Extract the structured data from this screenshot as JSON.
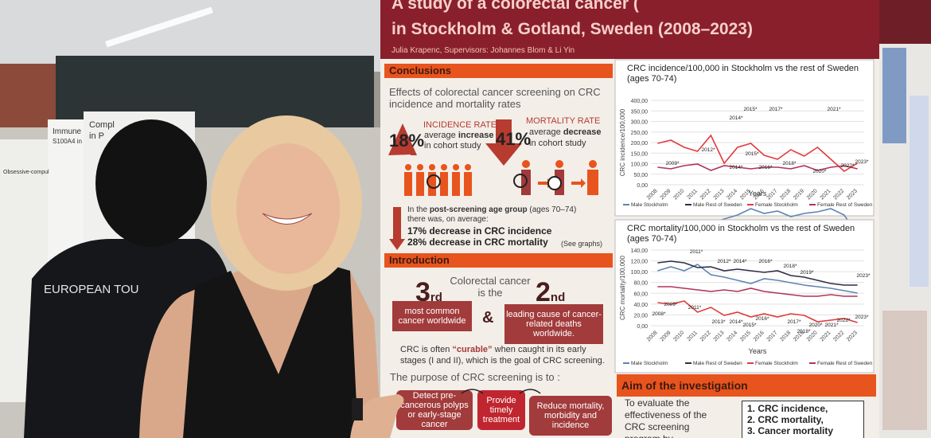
{
  "background": {
    "posters": [
      "Immune",
      "S100A4 in",
      "Compl",
      "in P",
      "Obsessive-compul"
    ],
    "tshirt": "EUROPEAN TOU"
  },
  "poster": {
    "title_lines": [
      "A study of a colorectal cancer (",
      "in Stockholm & Gotland, Sweden (2008–2023)"
    ],
    "authors": "Julia Krapenc, Supervisors: Johannes Blom & Li Yin",
    "conclusions": {
      "heading": "Conclusions",
      "intro": "Effects of colorectal cancer screening on CRC incidence and mortality rates",
      "incidence": {
        "value": "18%",
        "label": "INCIDENCE RATE",
        "pre": "average ",
        "bold": "increase",
        "post": "in cohort study"
      },
      "mortality": {
        "value": "41%",
        "label": "MORTALITY RATE",
        "pre": "average ",
        "bold": "decrease",
        "post": "in cohort study"
      },
      "post_pre": "In the ",
      "post_bold": "post-screening age group",
      "post_post": " (ages 70–74)",
      "post_line2": "there was, on average:",
      "items": [
        "17% decrease in CRC incidence",
        "28% decrease in CRC mortality"
      ],
      "note": "(See graphs)"
    },
    "introduction": {
      "heading": "Introduction",
      "lead": "Colorectal cancer is the",
      "rank1": {
        "num": "3",
        "suffix": "rd",
        "text": "most common cancer worldwide"
      },
      "and": "&",
      "rank2": {
        "num": "2",
        "suffix": "nd",
        "text": "leading cause of cancer-related deaths worldwide."
      },
      "curable_pre": "CRC is often ",
      "curable_bold": "“curable”",
      "curable_post": " when caught in its early stages (I and II), which is the goal of CRC screening.",
      "purpose": "The purpose of CRC screening is to :",
      "steps": [
        "Detect pre-cancerous polyps or early-stage cancer",
        "Provide timely treatment",
        "Reduce mortality, morbidity and incidence"
      ]
    },
    "charts": [
      {
        "title_lines": [
          "CRC incidence/100,000 in Stockholm vs the rest of Sweden",
          "(ages 70-74)"
        ],
        "y_label": "CRC incidence/100,000",
        "yticks": [
          "400,00",
          "350,00",
          "300,00",
          "250,00",
          "200,00",
          "150,00",
          "100,00",
          "50,00",
          "0,00"
        ],
        "years": [
          2008,
          2009,
          2010,
          2011,
          2012,
          2013,
          2014,
          2015,
          2016,
          2017,
          2018,
          2019,
          2020,
          2021,
          2022,
          2023
        ],
        "x_label": "Years",
        "legend": [
          "Male Stockholm",
          "Male Rest of Sweden",
          "Female Stockholm",
          "Female Rest of Sweden"
        ],
        "annotations": [
          "2015*",
          "2017*",
          "2021*",
          "2014*",
          "2012*",
          "2015*",
          "2009*",
          "2014*",
          "2016*",
          "2018*",
          "2020*",
          "2022*",
          "2023*"
        ]
      },
      {
        "title_lines": [
          "CRC mortality/100,000 in Stockholm vs the rest of Sweden",
          "(ages 70-74)"
        ],
        "y_label": "CRC mortality/100,000",
        "yticks": [
          "140,00",
          "120,00",
          "100,00",
          "80,00",
          "60,00",
          "40,00",
          "20,00",
          "0,00"
        ],
        "years": [
          2008,
          2009,
          2010,
          2011,
          2012,
          2013,
          2014,
          2015,
          2016,
          2017,
          2018,
          2019,
          2020,
          2021,
          2022,
          2023
        ],
        "x_label": "Years",
        "legend": [
          "Male Stockholm",
          "Male Rest of Sweden",
          "Female Stockholm",
          "Female Rest of Sweden"
        ],
        "annotations": [
          "2011*",
          "2012*",
          "2014*",
          "2016*",
          "2018*",
          "2019*",
          "2023*",
          "2009*",
          "2011*",
          "2008*",
          "2013*",
          "2014*",
          "2015*",
          "2016*",
          "2017*",
          "2018*",
          "2020*",
          "2021*",
          "2022*",
          "2023*"
        ]
      }
    ],
    "aim": {
      "heading": "Aim of the investigation",
      "text": "To evaluate the effectiveness of the CRC screening program by comparing",
      "list": [
        "1.  CRC incidence,",
        "2.  CRC mortality,",
        "3.  Cancer mortality"
      ]
    }
  }
}
